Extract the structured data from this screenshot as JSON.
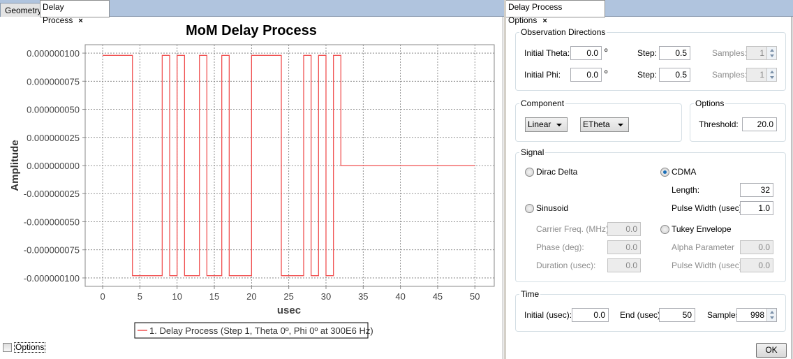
{
  "left_tabs": [
    {
      "label": "Geometry"
    },
    {
      "label": "Delay Process",
      "close": "×"
    }
  ],
  "right_tabs": [
    {
      "label": "Delay Process Options",
      "close": "×"
    }
  ],
  "chart_data": {
    "type": "line",
    "title": "MoM Delay Process",
    "xlabel": "usec",
    "ylabel": "Amplitude",
    "xlim": [
      -2.35,
      52.6
    ],
    "ylim": [
      -1.075e-07,
      1.075e-07
    ],
    "xticks": [
      0,
      5,
      10,
      15,
      20,
      25,
      30,
      35,
      40,
      45,
      50
    ],
    "yticks": [
      1e-07,
      7.5e-08,
      5e-08,
      2.5e-08,
      0,
      -2.5e-08,
      -5e-08,
      -7.5e-08,
      -1e-07
    ],
    "ytick_labels": [
      "0.000000100",
      "0.000000075",
      "0.000000050",
      "0.000000025",
      "0.000000000",
      "-0.000000025",
      "-0.000000050",
      "-0.000000075",
      "-0.000000100"
    ],
    "grid": true,
    "legend_position": "bottom",
    "series": [
      {
        "name": "1. Delay Process (Step 1, Theta 0º, Phi 0º at 300E6 Hz)",
        "color": "#f05050",
        "step_points": [
          [
            0,
            9.8e-08
          ],
          [
            4,
            -9.8e-08
          ],
          [
            8,
            9.8e-08
          ],
          [
            9,
            -9.8e-08
          ],
          [
            10,
            9.8e-08
          ],
          [
            11,
            -9.8e-08
          ],
          [
            13,
            9.8e-08
          ],
          [
            14,
            -9.8e-08
          ],
          [
            16,
            9.8e-08
          ],
          [
            17,
            -9.8e-08
          ],
          [
            20,
            9.8e-08
          ],
          [
            24,
            -9.8e-08
          ],
          [
            27,
            9.8e-08
          ],
          [
            28,
            -9.8e-08
          ],
          [
            29,
            9.8e-08
          ],
          [
            30,
            -9.8e-08
          ],
          [
            31,
            9.8e-08
          ],
          [
            32,
            0
          ],
          [
            50,
            0
          ]
        ]
      }
    ]
  },
  "options_checkbox": {
    "label": "Options",
    "checked": false
  },
  "obs": {
    "title": "Observation Directions",
    "theta_label": "Initial Theta:",
    "theta": "0.0",
    "deg": "º",
    "step_label": "Step:",
    "theta_step": "0.5",
    "samples_label": "Samples:",
    "theta_samples": "1",
    "phi_label": "Initial Phi:",
    "phi": "0.0",
    "phi_step": "0.5",
    "phi_samples": "1"
  },
  "component": {
    "title": "Component",
    "type": "Linear",
    "field": "ETheta"
  },
  "options": {
    "title": "Options",
    "threshold_label": "Threshold:",
    "threshold": "20.0"
  },
  "signal": {
    "title": "Signal",
    "dirac": "Dirac Delta",
    "cdma": "CDMA",
    "selected": "CDMA",
    "length_label": "Length:",
    "length": "32",
    "pw_label": "Pulse Width (usec):",
    "pw": "1.0",
    "sinusoid": "Sinusoid",
    "carrier_label": "Carrier Freq. (MHz):",
    "carrier": "0.0",
    "phase_label": "Phase (deg):",
    "phase": "0.0",
    "duration_label": "Duration (usec):",
    "duration": "0.0",
    "tukey": "Tukey Envelope",
    "alpha_label": "Alpha Parameter",
    "alpha": "0.0",
    "tpw_label": "Pulse Width (usec):",
    "tpw": "0.0"
  },
  "time": {
    "title": "Time",
    "initial_label": "Initial (usec):",
    "initial": "0.0",
    "end_label": "End (usec)",
    "end": "50",
    "samples_label": "Samples",
    "samples": "998"
  },
  "ok": "OK"
}
